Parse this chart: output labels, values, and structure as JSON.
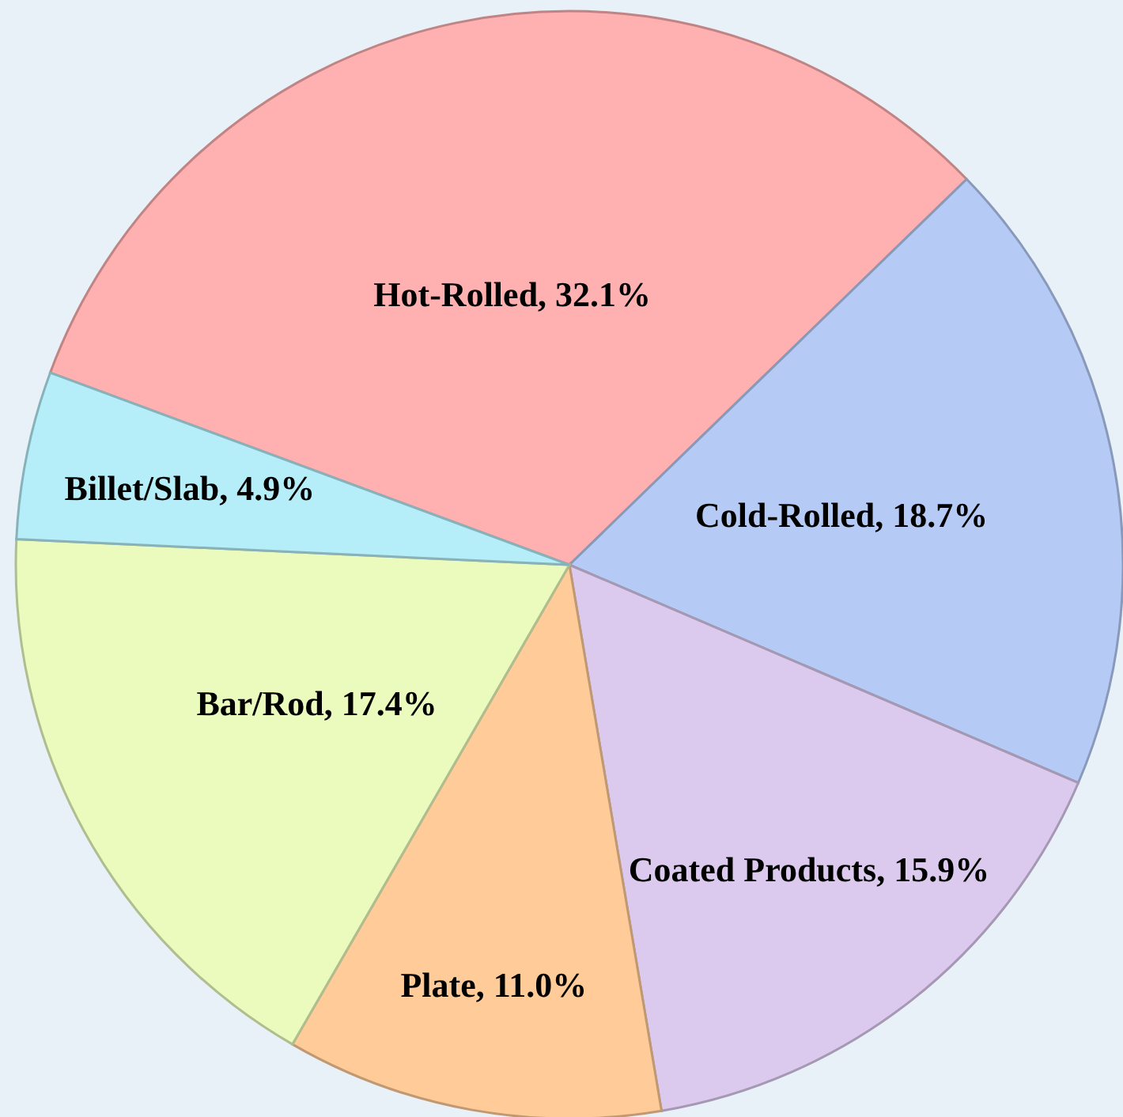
{
  "chart_data": {
    "type": "pie",
    "categories": [
      "Hot-Rolled",
      "Cold-Rolled",
      "Coated Products",
      "Plate",
      "Bar/Rod",
      "Billet/Slab"
    ],
    "values": [
      32.1,
      18.7,
      15.9,
      11.0,
      17.4,
      4.9
    ],
    "value_labels": [
      "32.1%",
      "18.7%",
      "15.9%",
      "11.0%",
      "17.4%",
      "4.9%"
    ],
    "colors": [
      "#ffb0b0",
      "#b5cbf6",
      "#dccaee",
      "#ffcb98",
      "#eafbbd",
      "#b5edf8"
    ],
    "legend": false
  }
}
